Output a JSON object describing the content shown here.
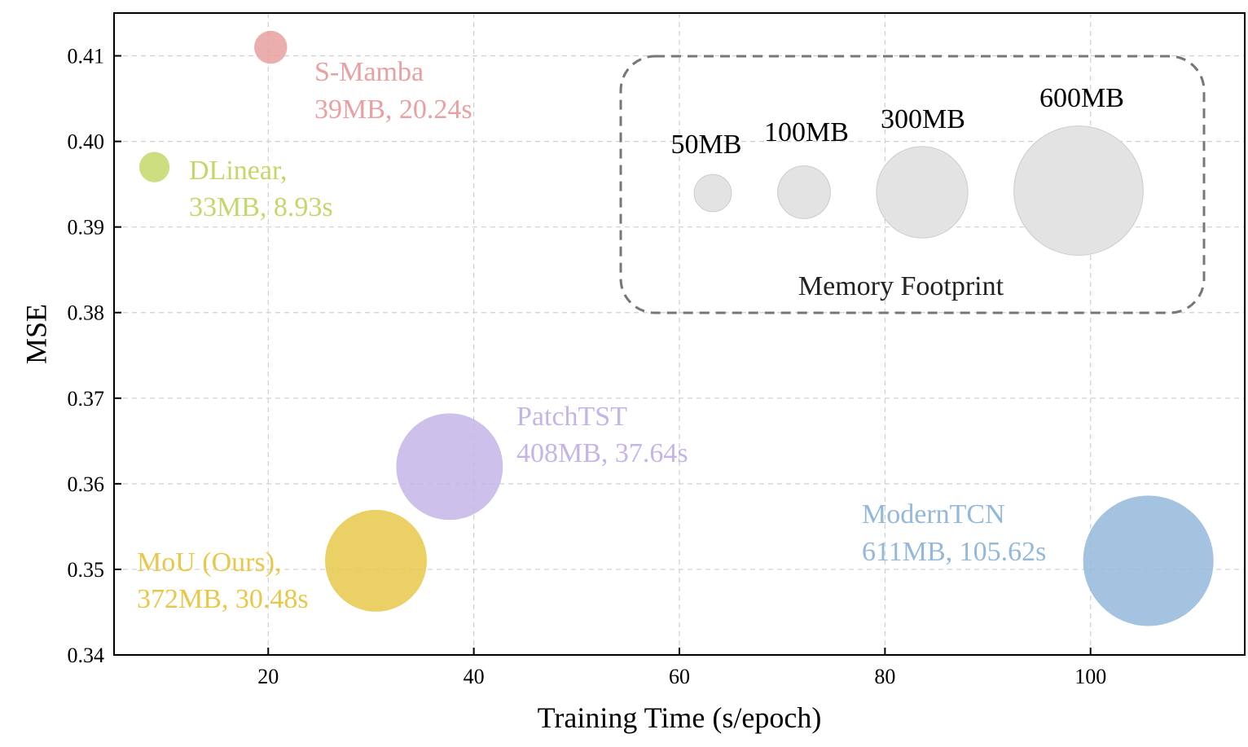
{
  "chart_data": {
    "type": "scatter",
    "subtype": "bubble",
    "xlabel": "Training Time (s/epoch)",
    "ylabel": "MSE",
    "xlim": [
      5,
      115
    ],
    "ylim": [
      0.34,
      0.415
    ],
    "xticks": [
      20,
      40,
      60,
      80,
      100
    ],
    "yticks": [
      0.34,
      0.35,
      0.36,
      0.37,
      0.38,
      0.39,
      0.4,
      0.41
    ],
    "ytick_labels": [
      "0.34",
      "0.35",
      "0.36",
      "0.37",
      "0.38",
      "0.39",
      "0.40",
      "0.41"
    ],
    "grid": true,
    "points": [
      {
        "name": "S-Mamba",
        "label_line1": "S-Mamba",
        "label_line2": "39MB, 20.24s",
        "x": 20.24,
        "y": 0.411,
        "memory_mb": 39,
        "color": "#e8a0a0"
      },
      {
        "name": "DLinear",
        "label_line1": "DLinear,",
        "label_line2": "33MB, 8.93s",
        "x": 8.93,
        "y": 0.397,
        "memory_mb": 33,
        "color": "#c3d86a"
      },
      {
        "name": "PatchTST",
        "label_line1": "PatchTST",
        "label_line2": "408MB, 37.64s",
        "x": 37.64,
        "y": 0.362,
        "memory_mb": 408,
        "color": "#c4b5e6"
      },
      {
        "name": "MoU (Ours)",
        "label_line1": "MoU (Ours),",
        "label_line2": "372MB, 30.48s",
        "x": 30.48,
        "y": 0.351,
        "memory_mb": 372,
        "color": "#e8c84a"
      },
      {
        "name": "ModernTCN",
        "label_line1": "ModernTCN",
        "label_line2": "611MB, 105.62s",
        "x": 105.62,
        "y": 0.351,
        "memory_mb": 611,
        "color": "#93b8da"
      }
    ],
    "size_legend": {
      "title": "Memory Footprint",
      "entries": [
        {
          "label": "50MB",
          "memory_mb": 50
        },
        {
          "label": "100MB",
          "memory_mb": 100
        },
        {
          "label": "300MB",
          "memory_mb": 300
        },
        {
          "label": "600MB",
          "memory_mb": 600
        }
      ],
      "bubble_color": "#e3e3e3",
      "placement": "top-right"
    }
  }
}
